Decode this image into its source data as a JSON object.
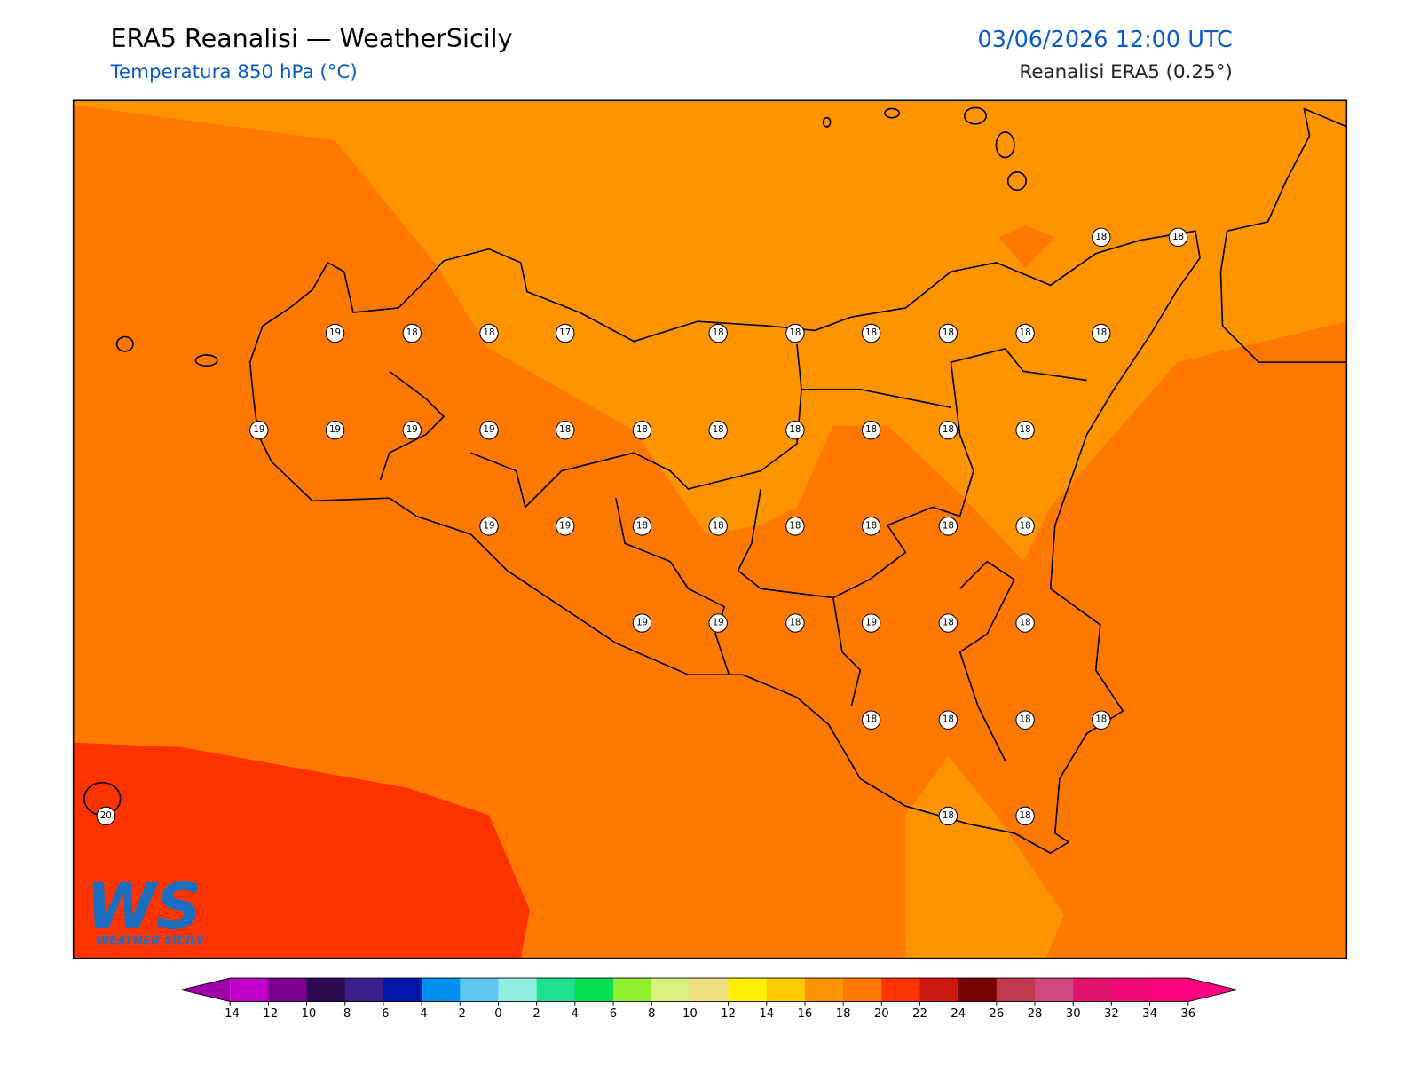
{
  "header": {
    "title": "ERA5 Reanalisi — WeatherSicily",
    "subtitle": "Temperatura 850 hPa (°C)",
    "datetime": "03/06/2026 12:00 UTC",
    "source": "Reanalisi ERA5 (0.25°)"
  },
  "map": {
    "stations": [
      18,
      18,
      19,
      18,
      18,
      17,
      18,
      18,
      18,
      18,
      18,
      18,
      19,
      19,
      19,
      19,
      18,
      18,
      18,
      18,
      18,
      18,
      18,
      19,
      19,
      18,
      18,
      18,
      18,
      18,
      18,
      19,
      19,
      18,
      19,
      18,
      18,
      18,
      18,
      18,
      18,
      18,
      18,
      20
    ]
  },
  "colorbar": {
    "ticks": [
      -14,
      -12,
      -10,
      -8,
      -6,
      -4,
      -2,
      0,
      2,
      4,
      6,
      8,
      10,
      12,
      14,
      16,
      18,
      20,
      22,
      24,
      26,
      28,
      30,
      32,
      34,
      36
    ],
    "colors": [
      "#c000c8",
      "#7a0090",
      "#2e0a50",
      "#3a1f8a",
      "#0018a8",
      "#0090f0",
      "#60c8f0",
      "#90f0e0",
      "#20e090",
      "#00e050",
      "#90f030",
      "#d8f080",
      "#f0e080",
      "#ffef00",
      "#ffcc00",
      "#ff9400",
      "#ff7800",
      "#ff3300",
      "#cc1a10",
      "#7a0000",
      "#c03a50",
      "#d04880",
      "#e0146e",
      "#f00a78",
      "#ff0080"
    ],
    "extend_colors": [
      "#a000a8",
      "#ff0080"
    ]
  },
  "logo": {
    "mark": "WS",
    "text": "WEATHER SICILY"
  }
}
